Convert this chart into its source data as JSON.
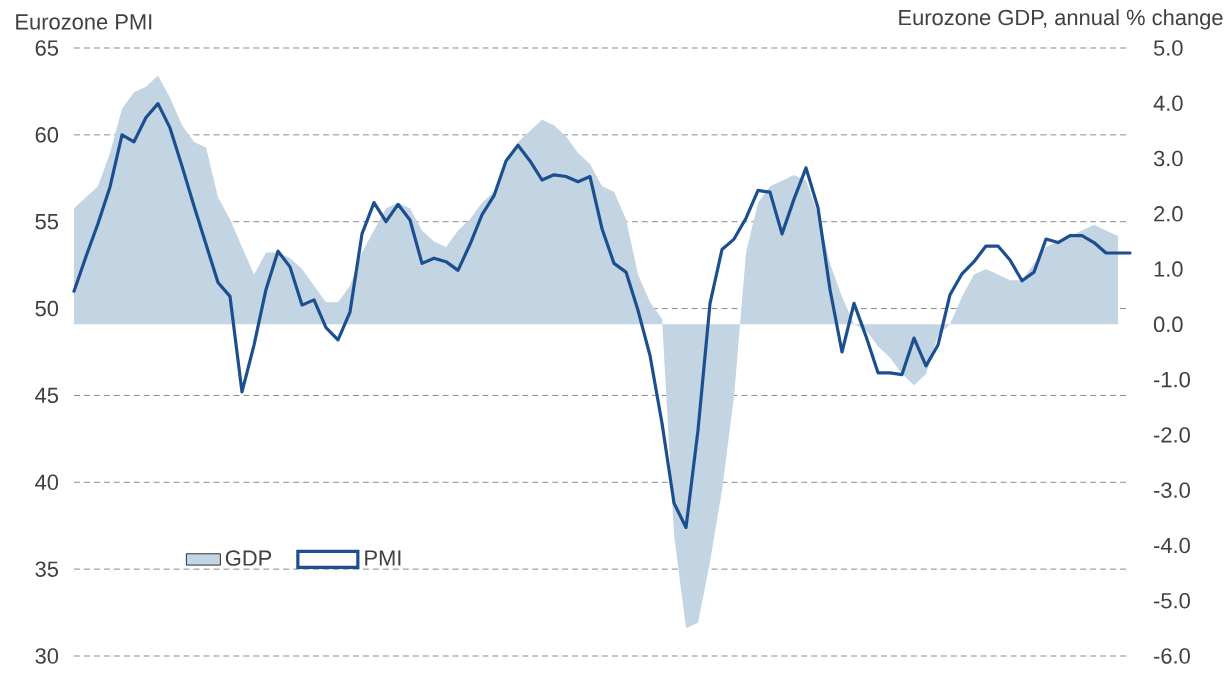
{
  "chart_data": {
    "type": "area",
    "ylabel": "Eurozone PMI",
    "y2label": "Eurozone GDP, annual % change",
    "categories": [
      null,
      null,
      null,
      null,
      null,
      null,
      null,
      null,
      null,
      null,
      null,
      null,
      null,
      null,
      null,
      null,
      null,
      null,
      null,
      null,
      null,
      null,
      null,
      null,
      null,
      null,
      null,
      null,
      null,
      null,
      null,
      null,
      null,
      null,
      null,
      null,
      null,
      null,
      null,
      null,
      null,
      null,
      null,
      null,
      null,
      null,
      null,
      null,
      null,
      null,
      null,
      null,
      null,
      null,
      null,
      null,
      null,
      null,
      null,
      null,
      null,
      null,
      null,
      null,
      null,
      null,
      null,
      null,
      null,
      null,
      null,
      null,
      null,
      null,
      null,
      null,
      null,
      null,
      null,
      null,
      null,
      null,
      null,
      null,
      null,
      null,
      null,
      null,
      null
    ],
    "ylim": [
      30,
      65
    ],
    "yticks": [
      30,
      35,
      40,
      45,
      50,
      55,
      60,
      65
    ],
    "y2lim": [
      -6,
      5
    ],
    "y2ticks": [
      {
        "value": -6,
        "label": "-6.0"
      },
      {
        "value": -5,
        "label": "-5.0"
      },
      {
        "value": -4,
        "label": "-4.0"
      },
      {
        "value": -3,
        "label": "-3.0"
      },
      {
        "value": -2,
        "label": "-2.0"
      },
      {
        "value": -1,
        "label": "-1.0"
      },
      {
        "value": 0,
        "label": "0.0"
      },
      {
        "value": 1,
        "label": "1.0"
      },
      {
        "value": 2,
        "label": "2.0"
      },
      {
        "value": 3,
        "label": "3.0"
      },
      {
        "value": 4,
        "label": "4.0"
      },
      {
        "value": 5,
        "label": "5.0"
      }
    ],
    "grid": "y",
    "legend": "bottom left",
    "tick_labels": "y",
    "series": [
      {
        "name": "GDP",
        "axis": "y2",
        "color": "#c3d4e2",
        "values": [
          2.1,
          2.3,
          2.5,
          3.1,
          3.9,
          4.2,
          4.3,
          4.5,
          4.1,
          3.6,
          3.3,
          3.2,
          2.3,
          1.9,
          1.4,
          0.9,
          1.3,
          1.3,
          1.2,
          1.0,
          0.7,
          0.4,
          0.4,
          0.7,
          1.3,
          1.7,
          2.1,
          2.2,
          2.1,
          1.7,
          1.5,
          1.4,
          1.7,
          1.9,
          2.2,
          2.4,
          2.9,
          3.3,
          3.5,
          3.7,
          3.6,
          3.4,
          3.1,
          2.9,
          2.5,
          2.4,
          1.9,
          0.9,
          0.4,
          0.1,
          -3.8,
          -5.5,
          -5.4,
          -4.3,
          -3.0,
          -1.3,
          1.3,
          2.2,
          2.5,
          2.6,
          2.7,
          2.6,
          2.0,
          1.1,
          0.5,
          0.0,
          -0.1,
          -0.4,
          -0.6,
          -0.9,
          -1.1,
          -0.9,
          -0.2,
          0.0,
          0.5,
          0.9,
          1.0,
          0.9,
          0.8,
          0.8,
          1.1,
          1.4,
          1.5,
          1.6,
          1.7,
          1.8,
          1.7,
          1.6,
          null
        ]
      },
      {
        "name": "PMI",
        "type": "line",
        "axis": "y",
        "color": "#1b4f8f",
        "values": [
          51.0,
          53.0,
          54.9,
          57.0,
          60.0,
          59.6,
          61.0,
          61.8,
          60.4,
          58.2,
          55.9,
          53.7,
          51.5,
          50.7,
          45.2,
          47.9,
          51.1,
          53.3,
          52.4,
          50.2,
          50.5,
          48.9,
          48.2,
          49.8,
          54.3,
          56.1,
          55.0,
          56.0,
          55.1,
          52.6,
          52.9,
          52.7,
          52.2,
          53.7,
          55.4,
          56.5,
          58.5,
          59.4,
          58.5,
          57.4,
          57.7,
          57.6,
          57.3,
          57.6,
          54.6,
          52.6,
          52.1,
          49.9,
          47.3,
          43.4,
          38.8,
          37.4,
          43.0,
          50.3,
          53.4,
          54.0,
          55.2,
          56.8,
          56.7,
          54.3,
          56.3,
          58.1,
          55.8,
          51.1,
          47.5,
          50.3,
          48.4,
          46.3,
          46.3,
          46.2,
          48.3,
          46.7,
          47.9,
          50.8,
          52.0,
          52.7,
          53.6,
          53.6,
          52.8,
          51.6,
          52.1,
          54.0,
          53.8,
          54.2,
          54.2,
          53.8,
          53.2,
          53.2,
          53.2
        ]
      }
    ]
  }
}
